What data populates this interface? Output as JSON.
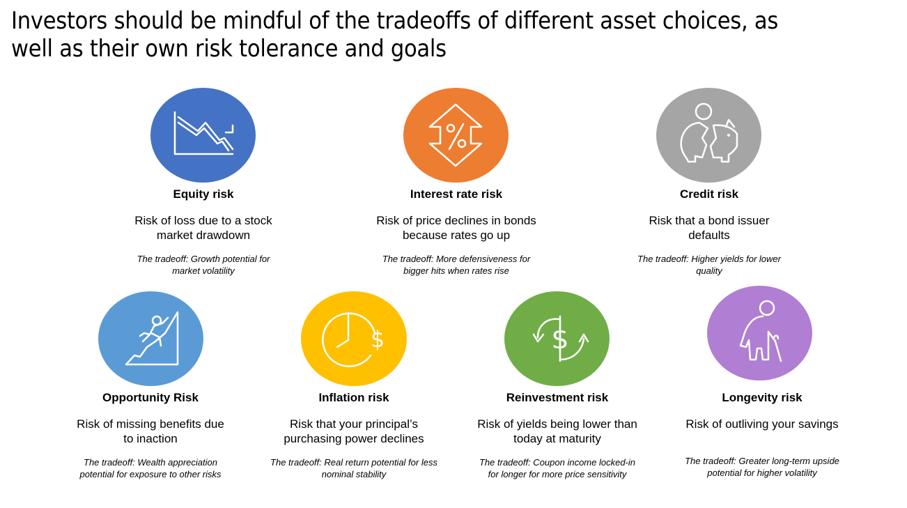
{
  "title": "Investors should be mindful of the tradeoffs of different asset choices, as well as their own risk tolerance and goals",
  "risks": [
    {
      "name": "Equity risk",
      "description": "Risk of loss due to a stock market drawdown",
      "tradeoff": "The tradeoff: Growth potential for market volatility",
      "color": "#4472C4",
      "icon": "declining-chart-icon"
    },
    {
      "name": "Interest rate risk",
      "description": "Risk of price declines in bonds because rates go up",
      "tradeoff": "The tradeoff: More defensiveness for bigger hits when rates rise",
      "color": "#ED7D31",
      "icon": "percent-arrows-icon"
    },
    {
      "name": "Credit risk",
      "description": "Risk that a bond issuer defaults",
      "tradeoff": "The tradeoff: Higher yields for lower quality",
      "color": "#A5A5A5",
      "icon": "broken-piggy-bank-icon"
    },
    {
      "name": "Opportunity Risk",
      "description": "Risk of missing benefits due to inaction",
      "tradeoff": "The tradeoff: Wealth appreciation potential for exposure to other risks",
      "color": "#5B9BD5",
      "icon": "climber-icon"
    },
    {
      "name": "Inflation risk",
      "description": "Risk that your principal’s purchasing power declines",
      "tradeoff": "The tradeoff: Real return potential for less nominal stability",
      "color": "#FFC000",
      "icon": "clock-dollar-icon"
    },
    {
      "name": "Reinvestment risk",
      "description": "Risk of yields being lower than today at maturity",
      "tradeoff": "The tradeoff: Coupon income locked-in for longer for more price sensitivity",
      "color": "#70AD47",
      "icon": "dollar-cycle-icon"
    },
    {
      "name": "Longevity risk",
      "description": "Risk of outliving your savings",
      "tradeoff": "The tradeoff: Greater long-term upside potential for higher volatility",
      "color": "#B07ED2",
      "icon": "elderly-person-icon"
    }
  ]
}
